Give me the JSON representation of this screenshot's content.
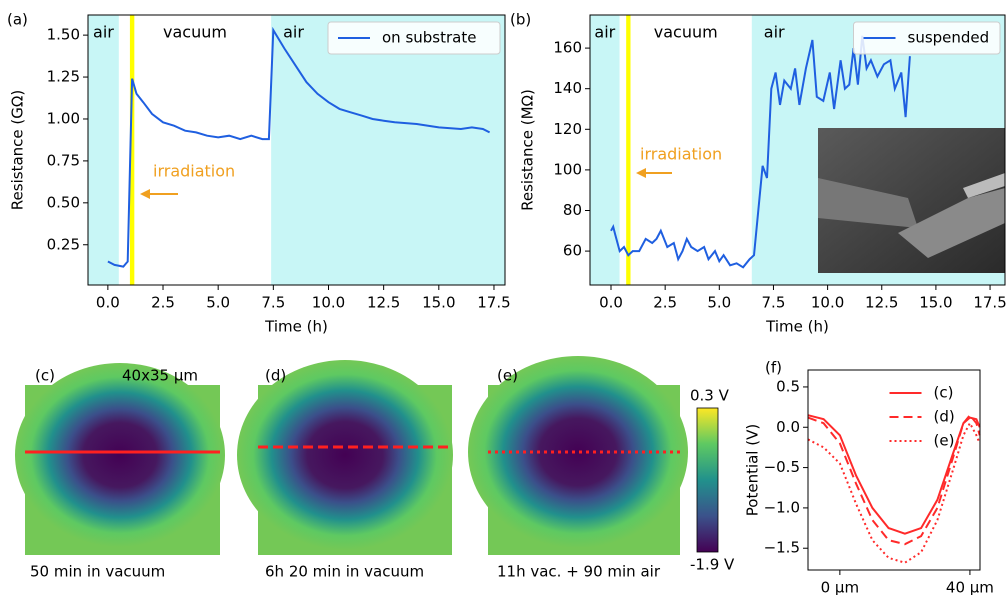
{
  "chart_data": [
    {
      "type": "line",
      "label": "(a)",
      "xlabel": "Time (h)",
      "ylabel": "Resistance (GΩ)",
      "xlim": [
        -0.9,
        18.0
      ],
      "ylim": [
        0.01,
        1.62
      ],
      "xticks": [
        {
          "value": 0,
          "label": "0.0"
        },
        2.5,
        {
          "value": 5,
          "label": "5.0"
        },
        7.5,
        {
          "value": 10,
          "label": "10.0"
        },
        12.5,
        {
          "value": 15,
          "label": "15.0"
        },
        17.5
      ],
      "yticks": [
        0.25,
        {
          "value": 0.5,
          "label": "0.50"
        },
        0.75,
        {
          "value": 1,
          "label": "1.00"
        },
        1.25,
        {
          "value": 1.5,
          "label": "1.50"
        }
      ],
      "legend": "upper right",
      "legend_frame": true,
      "regions": [
        {
          "label": "air",
          "start": -0.9,
          "end": 0.5,
          "color": "#c8f6f6"
        },
        {
          "label": "vacuum",
          "start": 0.5,
          "end": 7.4,
          "color": "#ffffff"
        },
        {
          "label": "air",
          "start": 7.4,
          "end": 18.0,
          "color": "#c8f6f6"
        },
        {
          "start": 1.0,
          "end": 1.2,
          "color": "#ffff00"
        }
      ],
      "annotation": {
        "text": "irradiation",
        "color": "#f0a020"
      },
      "x": [
        0,
        0.3,
        0.7,
        0.9,
        1.1,
        1.3,
        1.6,
        2,
        2.5,
        3,
        3.5,
        4,
        4.5,
        5,
        5.5,
        6,
        6.5,
        7,
        7.3,
        7.5,
        8,
        8.5,
        9,
        9.5,
        10,
        10.5,
        11,
        11.5,
        12,
        12.5,
        13,
        14,
        15,
        16,
        16.5,
        17,
        17.3
      ],
      "series": [
        {
          "name": "on substrate",
          "color": "#1f5fe0",
          "dash": "solid",
          "values": [
            0.15,
            0.13,
            0.12,
            0.15,
            1.24,
            1.15,
            1.1,
            1.03,
            0.98,
            0.96,
            0.93,
            0.92,
            0.9,
            0.89,
            0.9,
            0.88,
            0.9,
            0.88,
            0.88,
            1.53,
            1.42,
            1.32,
            1.22,
            1.15,
            1.1,
            1.06,
            1.04,
            1.02,
            1.0,
            0.99,
            0.98,
            0.97,
            0.95,
            0.94,
            0.95,
            0.94,
            0.92
          ]
        }
      ]
    },
    {
      "type": "line",
      "label": "(b)",
      "xlabel": "Time (h)",
      "ylabel": "Resistance (MΩ)",
      "xlim": [
        -0.97,
        18.19
      ],
      "ylim": [
        43.3,
        176.3
      ],
      "xticks": [
        {
          "value": 0,
          "label": "0.0"
        },
        2.5,
        {
          "value": 5,
          "label": "5.0"
        },
        7.5,
        {
          "value": 10,
          "label": "10.0"
        },
        12.5,
        {
          "value": 15,
          "label": "15.0"
        },
        17.5
      ],
      "yticks": [
        60,
        80,
        100,
        120,
        140,
        160
      ],
      "legend": "upper right",
      "legend_frame": true,
      "regions": [
        {
          "label": "air",
          "start": -0.97,
          "end": 0.4,
          "color": "#c8f6f6"
        },
        {
          "label": "vacuum",
          "start": 0.4,
          "end": 6.5,
          "color": "#ffffff"
        },
        {
          "label": "air",
          "start": 6.5,
          "end": 18.19,
          "color": "#c8f6f6"
        },
        {
          "start": 0.7,
          "end": 0.9,
          "color": "#ffff00"
        }
      ],
      "annotation": {
        "text": "irradiation",
        "color": "#f0a020"
      },
      "x": [
        0,
        0.1,
        0.2,
        0.4,
        0.6,
        0.8,
        1.0,
        1.3,
        1.6,
        1.9,
        2.1,
        2.3,
        2.6,
        2.9,
        3.1,
        3.3,
        3.5,
        3.7,
        4,
        4.3,
        4.5,
        4.8,
        5,
        5.2,
        5.5,
        5.8,
        6.1,
        6.4,
        6.6,
        6.8,
        7.0,
        7.2,
        7.4,
        7.6,
        7.8,
        8,
        8.3,
        8.5,
        8.7,
        9,
        9.3,
        9.5,
        9.8,
        10.1,
        10.3,
        10.6,
        10.8,
        11,
        11.2,
        11.4,
        11.6,
        11.8,
        12,
        12.3,
        12.6,
        12.9,
        13.1,
        13.4,
        13.6,
        13.8
      ],
      "series": [
        {
          "name": "suspended",
          "color": "#1f5fe0",
          "dash": "solid",
          "values": [
            70,
            72,
            68,
            60,
            62,
            58,
            60,
            60,
            66,
            64,
            66,
            70,
            62,
            64,
            56,
            60,
            66,
            62,
            60,
            62,
            56,
            60,
            55,
            58,
            53,
            54,
            52,
            56,
            58,
            80,
            102,
            96,
            140,
            148,
            132,
            144,
            140,
            150,
            132,
            150,
            164,
            136,
            134,
            148,
            130,
            154,
            140,
            142,
            160,
            142,
            166,
            150,
            154,
            146,
            152,
            154,
            140,
            148,
            126,
            156
          ]
        }
      ]
    },
    {
      "type": "line",
      "label": "(f)",
      "ylabel": "Potential (V)",
      "xlim": [
        -9.8,
        43.1
      ],
      "ylim": [
        -1.77,
        0.71
      ],
      "xticks": [
        {
          "value": 0,
          "label": "0 μm"
        },
        {
          "value": 40,
          "label": "40 μm"
        }
      ],
      "yticks": [
        0.5,
        {
          "value": 0,
          "label": "0.0"
        },
        {
          "value": -0.5,
          "label": "−0.5"
        },
        {
          "value": -1,
          "label": "−1.0"
        },
        {
          "value": -1.5,
          "label": "−1.5"
        }
      ],
      "legend": "upper right",
      "legend_frame": false,
      "x": [
        -9.8,
        -5,
        0,
        5,
        10,
        15,
        20,
        25,
        30,
        35,
        38,
        40,
        42,
        43
      ],
      "series": [
        {
          "name": "(c)",
          "color": "#ff2a2a",
          "dash": "solid",
          "values": [
            0.15,
            0.1,
            -0.1,
            -0.6,
            -1.0,
            -1.25,
            -1.32,
            -1.25,
            -0.9,
            -0.3,
            0.05,
            0.12,
            0.1,
            0.0
          ]
        },
        {
          "name": "(d)",
          "color": "#ff2a2a",
          "dash": "dashed",
          "values": [
            0.12,
            0.05,
            -0.2,
            -0.7,
            -1.15,
            -1.4,
            -1.45,
            -1.35,
            -1.0,
            -0.35,
            0.05,
            0.15,
            0.05,
            -0.1
          ]
        },
        {
          "name": "(e)",
          "color": "#ff2a2a",
          "dash": "dotted",
          "values": [
            -0.15,
            -0.25,
            -0.45,
            -0.95,
            -1.4,
            -1.62,
            -1.68,
            -1.55,
            -1.15,
            -0.5,
            -0.1,
            0.05,
            -0.1,
            -0.2
          ]
        }
      ]
    }
  ],
  "maps": [
    {
      "label": "(c)",
      "scale": "40x35 μm",
      "caption": "50 min in vacuum"
    },
    {
      "label": "(d)",
      "caption": "6h 20 min in vacuum"
    },
    {
      "label": "(e)",
      "caption": "11h vac. + 90 min air"
    }
  ],
  "colorbar": {
    "max_label": "0.3 V",
    "min_label": "-1.9 V"
  }
}
